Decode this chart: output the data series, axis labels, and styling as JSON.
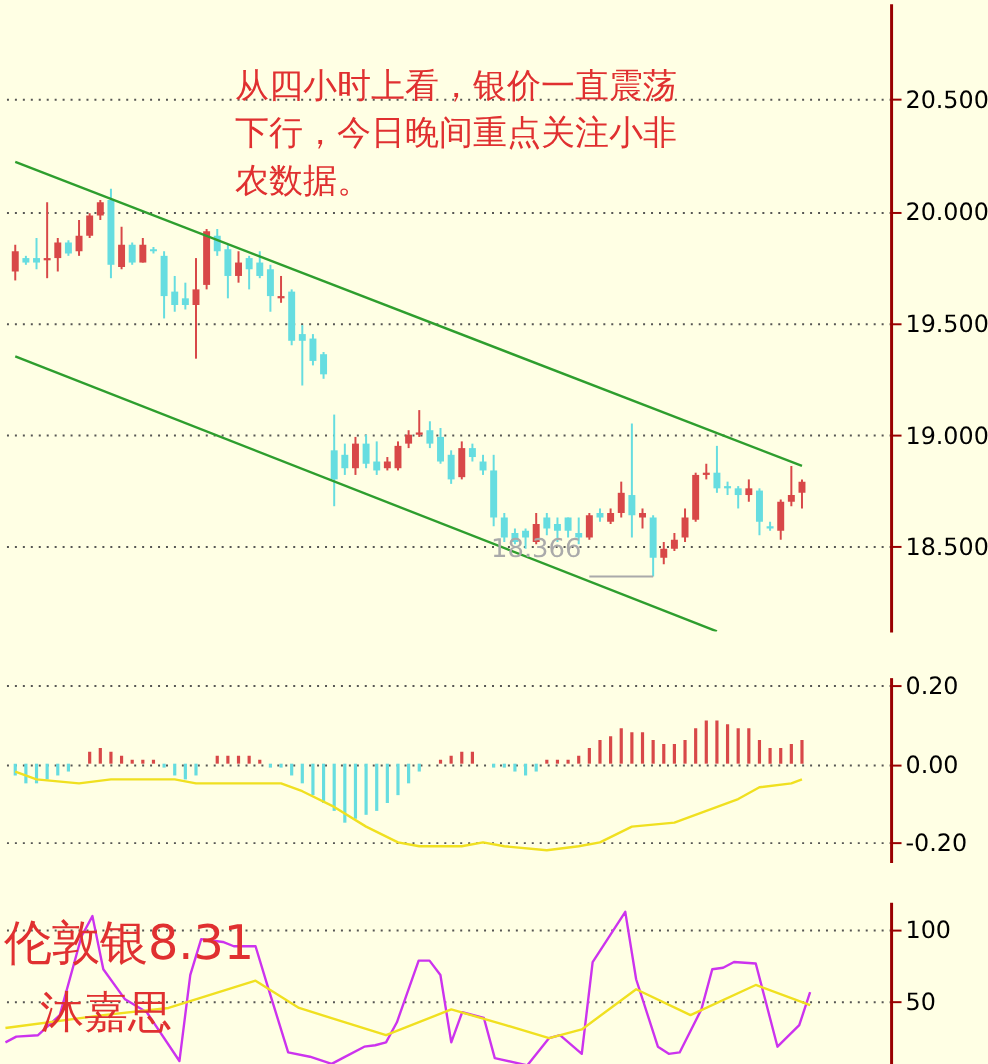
{
  "chart_data": [
    {
      "type": "candlestick",
      "categories": [
        null,
        null,
        null,
        null,
        null,
        null,
        null,
        null,
        null,
        null,
        null,
        null,
        null,
        null,
        null,
        null,
        null,
        null,
        null,
        null,
        null,
        null,
        null,
        null,
        null,
        null,
        null,
        null,
        null,
        null,
        null,
        null,
        null,
        null,
        null,
        null,
        null,
        null,
        null,
        null,
        null,
        null,
        null,
        null,
        null,
        null,
        null,
        null,
        null,
        null,
        null,
        null,
        null,
        null,
        null,
        null,
        null,
        null,
        null,
        null,
        null,
        null,
        null,
        null,
        null,
        null,
        null,
        null,
        null,
        null,
        null,
        null,
        null,
        null,
        null
      ],
      "ohlc": [
        [
          19.73,
          19.85,
          19.69,
          19.82
        ],
        [
          19.79,
          19.8,
          19.76,
          19.77
        ],
        [
          19.79,
          19.88,
          19.74,
          19.77
        ],
        [
          19.78,
          20.04,
          19.7,
          19.79
        ],
        [
          19.79,
          19.88,
          19.73,
          19.86
        ],
        [
          19.86,
          19.87,
          19.8,
          19.81
        ],
        [
          19.82,
          19.96,
          19.8,
          19.89
        ],
        [
          19.89,
          19.99,
          19.88,
          19.98
        ],
        [
          19.98,
          20.05,
          19.96,
          20.04
        ],
        [
          20.05,
          20.1,
          19.7,
          19.76
        ],
        [
          19.75,
          19.93,
          19.74,
          19.85
        ],
        [
          19.85,
          19.86,
          19.76,
          19.77
        ],
        [
          19.77,
          19.88,
          19.77,
          19.85
        ],
        [
          19.83,
          19.84,
          19.81,
          19.82
        ],
        [
          19.8,
          19.82,
          19.52,
          19.62
        ],
        [
          19.64,
          19.71,
          19.55,
          19.58
        ],
        [
          19.61,
          19.68,
          19.56,
          19.58
        ],
        [
          19.58,
          19.79,
          19.34,
          19.65
        ],
        [
          19.67,
          19.92,
          19.65,
          19.91
        ],
        [
          19.89,
          19.92,
          19.8,
          19.82
        ],
        [
          19.83,
          19.85,
          19.61,
          19.71
        ],
        [
          19.71,
          19.82,
          19.68,
          19.77
        ],
        [
          19.79,
          19.8,
          19.65,
          19.74
        ],
        [
          19.77,
          19.82,
          19.7,
          19.71
        ],
        [
          19.74,
          19.76,
          19.55,
          19.62
        ],
        [
          19.61,
          19.71,
          19.59,
          19.62
        ],
        [
          19.64,
          19.65,
          19.4,
          19.42
        ],
        [
          19.45,
          19.49,
          19.22,
          19.42
        ],
        [
          19.43,
          19.45,
          19.31,
          19.33
        ],
        [
          19.36,
          19.37,
          19.25,
          19.27
        ],
        [
          18.93,
          19.09,
          18.68,
          18.8
        ],
        [
          18.91,
          18.96,
          18.82,
          18.85
        ],
        [
          18.85,
          18.99,
          18.82,
          18.96
        ],
        [
          18.96,
          19.0,
          18.85,
          18.87
        ],
        [
          18.88,
          18.97,
          18.82,
          18.84
        ],
        [
          18.85,
          18.9,
          18.84,
          18.88
        ],
        [
          18.85,
          18.97,
          18.84,
          18.95
        ],
        [
          18.96,
          19.02,
          18.94,
          19.0
        ],
        [
          19.0,
          19.11,
          18.99,
          19.01
        ],
        [
          19.02,
          19.06,
          18.94,
          18.96
        ],
        [
          18.99,
          19.03,
          18.87,
          18.88
        ],
        [
          18.91,
          18.93,
          18.78,
          18.8
        ],
        [
          18.81,
          18.97,
          18.8,
          18.94
        ],
        [
          18.94,
          18.96,
          18.88,
          18.9
        ],
        [
          18.88,
          18.91,
          18.82,
          18.84
        ],
        [
          18.84,
          18.91,
          18.59,
          18.63
        ],
        [
          18.63,
          18.65,
          18.52,
          18.54
        ],
        [
          18.56,
          18.58,
          18.51,
          18.52
        ],
        [
          18.57,
          18.58,
          18.49,
          18.54
        ],
        [
          18.52,
          18.65,
          18.51,
          18.6
        ],
        [
          18.63,
          18.65,
          18.55,
          18.58
        ],
        [
          18.6,
          18.63,
          18.52,
          18.57
        ],
        [
          18.63,
          18.63,
          18.54,
          18.57
        ],
        [
          18.56,
          18.63,
          18.51,
          18.54
        ],
        [
          18.54,
          18.65,
          18.53,
          18.64
        ],
        [
          18.65,
          18.67,
          18.61,
          18.63
        ],
        [
          18.61,
          18.67,
          18.6,
          18.65
        ],
        [
          18.65,
          18.79,
          18.63,
          18.74
        ],
        [
          18.73,
          19.05,
          18.54,
          18.64
        ],
        [
          18.63,
          18.67,
          18.58,
          18.65
        ],
        [
          18.63,
          18.64,
          18.366,
          18.45
        ],
        [
          18.45,
          18.52,
          18.42,
          18.49
        ],
        [
          18.49,
          18.56,
          18.48,
          18.53
        ],
        [
          18.54,
          18.67,
          18.52,
          18.63
        ],
        [
          18.62,
          18.83,
          18.61,
          18.82
        ],
        [
          18.82,
          18.87,
          18.8,
          18.83
        ],
        [
          18.83,
          18.95,
          18.74,
          18.76
        ],
        [
          18.77,
          18.79,
          18.73,
          18.76
        ],
        [
          18.76,
          18.77,
          18.67,
          18.73
        ],
        [
          18.73,
          18.8,
          18.7,
          18.76
        ],
        [
          18.75,
          18.76,
          18.55,
          18.61
        ],
        [
          18.59,
          18.61,
          18.57,
          18.58
        ],
        [
          18.57,
          18.71,
          18.53,
          18.7
        ],
        [
          18.7,
          18.86,
          18.68,
          18.73
        ],
        [
          18.74,
          18.8,
          18.67,
          18.79
        ]
      ],
      "colors": [
        "#d84848",
        "#66dde0",
        "#66dde0",
        "#d84848",
        "#d84848",
        "#66dde0",
        "#d84848",
        "#d84848",
        "#d84848",
        "#66dde0",
        "#d84848",
        "#66dde0",
        "#d84848",
        "#66dde0",
        "#66dde0",
        "#66dde0",
        "#66dde0",
        "#d84848",
        "#d84848",
        "#66dde0",
        "#66dde0",
        "#d84848",
        "#66dde0",
        "#66dde0",
        "#66dde0",
        "#d84848",
        "#66dde0",
        "#66dde0",
        "#66dde0",
        "#66dde0",
        "#66dde0",
        "#66dde0",
        "#d84848",
        "#66dde0",
        "#66dde0",
        "#d84848",
        "#d84848",
        "#d84848",
        "#d84848",
        "#66dde0",
        "#66dde0",
        "#66dde0",
        "#d84848",
        "#66dde0",
        "#66dde0",
        "#66dde0",
        "#66dde0",
        "#66dde0",
        "#66dde0",
        "#d84848",
        "#66dde0",
        "#66dde0",
        "#66dde0",
        "#66dde0",
        "#d84848",
        "#66dde0",
        "#d84848",
        "#d84848",
        "#66dde0",
        "#d84848",
        "#66dde0",
        "#d84848",
        "#d84848",
        "#d84848",
        "#d84848",
        "#d84848",
        "#66dde0",
        "#66dde0",
        "#66dde0",
        "#d84848",
        "#66dde0",
        "#66dde0",
        "#d84848",
        "#d84848",
        "#d84848"
      ],
      "series": [
        {
          "type": "line",
          "color": "#2e9e2e",
          "values": [
            20.22,
            null,
            null,
            null,
            null,
            null,
            null,
            null,
            null,
            null,
            null,
            null,
            null,
            null,
            null,
            null,
            null,
            null,
            null,
            null,
            null,
            null,
            null,
            null,
            null,
            null,
            null,
            null,
            null,
            null,
            null,
            null,
            null,
            null,
            null,
            null,
            null,
            null,
            null,
            null,
            null,
            null,
            null,
            null,
            null,
            null,
            null,
            null,
            null,
            null,
            null,
            null,
            null,
            null,
            null,
            null,
            null,
            null,
            null,
            null,
            null,
            null,
            null,
            null,
            null,
            null,
            null,
            null,
            null,
            null,
            null,
            null,
            null,
            null,
            18.86
          ]
        },
        {
          "type": "line",
          "color": "#2e9e2e",
          "values": [
            19.35,
            null,
            null,
            null,
            null,
            null,
            null,
            null,
            null,
            null,
            null,
            null,
            null,
            null,
            null,
            null,
            null,
            null,
            null,
            null,
            null,
            null,
            null,
            null,
            null,
            null,
            null,
            null,
            null,
            null,
            null,
            null,
            null,
            null,
            null,
            null,
            null,
            null,
            null,
            null,
            null,
            null,
            null,
            null,
            null,
            null,
            null,
            null,
            null,
            null,
            null,
            null,
            null,
            null,
            null,
            null,
            null,
            null,
            null,
            null,
            null,
            null,
            null,
            null,
            null,
            null,
            18.12,
            null,
            null,
            null,
            null,
            null,
            null,
            null,
            null
          ]
        }
      ],
      "ylim": [
        18.12,
        20.93
      ],
      "yticks": [
        {
          "value": 18.5,
          "label": "18.500"
        },
        {
          "value": 19,
          "label": "19.000"
        },
        {
          "value": 19.5,
          "label": "19.500"
        },
        {
          "value": 20,
          "label": "20.000"
        },
        {
          "value": 20.5,
          "label": "20.500"
        }
      ],
      "grid": "y",
      "tick_labels": "y",
      "annotations": [
        "从四小时上看，银价一直震荡下行，今日晚间重点关注小非农数据。",
        "18.366"
      ]
    },
    {
      "type": "bar",
      "categories": [
        null,
        null,
        null,
        null,
        null,
        null,
        null,
        null,
        null,
        null,
        null,
        null,
        null,
        null,
        null,
        null,
        null,
        null,
        null,
        null,
        null,
        null,
        null,
        null,
        null,
        null,
        null,
        null,
        null,
        null,
        null,
        null,
        null,
        null,
        null,
        null,
        null,
        null,
        null,
        null,
        null,
        null,
        null,
        null,
        null,
        null,
        null,
        null,
        null,
        null,
        null,
        null,
        null,
        null,
        null,
        null,
        null,
        null,
        null,
        null,
        null,
        null,
        null,
        null,
        null,
        null,
        null,
        null,
        null,
        null,
        null,
        null,
        null,
        null,
        null
      ],
      "series": [
        {
          "type": "bar",
          "values": [
            -0.03,
            -0.05,
            -0.05,
            -0.04,
            -0.03,
            -0.02,
            null,
            0.03,
            0.04,
            0.03,
            0.02,
            0.01,
            0.01,
            0.01,
            -0.01,
            -0.03,
            -0.04,
            -0.03,
            null,
            0.02,
            0.02,
            0.02,
            0.02,
            0.01,
            -0.01,
            -0.01,
            -0.03,
            -0.05,
            -0.08,
            -0.1,
            -0.12,
            -0.15,
            -0.14,
            -0.13,
            -0.12,
            -0.1,
            -0.08,
            -0.05,
            -0.02,
            null,
            0.01,
            0.02,
            0.03,
            0.03,
            null,
            -0.01,
            -0.01,
            -0.02,
            -0.03,
            -0.02,
            0.01,
            0.01,
            0.01,
            0.02,
            0.04,
            0.06,
            0.07,
            0.09,
            0.08,
            0.08,
            0.06,
            0.05,
            0.05,
            0.06,
            0.09,
            0.11,
            0.11,
            0.1,
            0.09,
            0.09,
            0.06,
            0.04,
            0.04,
            0.05,
            0.06
          ],
          "colors": [
            "#66dde0",
            "#66dde0",
            "#66dde0",
            "#66dde0",
            "#66dde0",
            "#66dde0",
            "#66dde0",
            "#d84848",
            "#d84848",
            "#d84848",
            "#d84848",
            "#d84848",
            "#d84848",
            "#d84848",
            "#66dde0",
            "#66dde0",
            "#66dde0",
            "#66dde0",
            "#66dde0",
            "#d84848",
            "#d84848",
            "#d84848",
            "#d84848",
            "#d84848",
            "#66dde0",
            "#66dde0",
            "#66dde0",
            "#66dde0",
            "#66dde0",
            "#66dde0",
            "#66dde0",
            "#66dde0",
            "#66dde0",
            "#66dde0",
            "#66dde0",
            "#66dde0",
            "#66dde0",
            "#66dde0",
            "#66dde0",
            "#66dde0",
            "#d84848",
            "#d84848",
            "#d84848",
            "#d84848",
            "#66dde0",
            "#66dde0",
            "#66dde0",
            "#66dde0",
            "#66dde0",
            "#66dde0",
            "#d84848",
            "#d84848",
            "#d84848",
            "#d84848",
            "#d84848",
            "#d84848",
            "#d84848",
            "#d84848",
            "#d84848",
            "#d84848",
            "#d84848",
            "#d84848",
            "#d84848",
            "#d84848",
            "#d84848",
            "#d84848",
            "#d84848",
            "#d84848",
            "#d84848",
            "#d84848",
            "#d84848",
            "#d84848",
            "#d84848",
            "#d84848",
            "#d84848"
          ]
        },
        {
          "type": "line",
          "color": "#f0e020",
          "values": [
            -0.02,
            null,
            -0.04,
            null,
            null,
            null,
            -0.05,
            null,
            null,
            -0.04,
            null,
            null,
            null,
            null,
            null,
            -0.04,
            null,
            -0.05,
            null,
            null,
            null,
            -0.05,
            null,
            null,
            null,
            -0.05,
            null,
            -0.07,
            null,
            null,
            -0.11,
            null,
            null,
            -0.16,
            null,
            null,
            -0.2,
            null,
            -0.21,
            null,
            null,
            null,
            -0.21,
            null,
            -0.2,
            null,
            -0.21,
            null,
            null,
            null,
            -0.22,
            null,
            null,
            -0.21,
            null,
            -0.2,
            null,
            null,
            -0.16,
            null,
            null,
            null,
            -0.15,
            null,
            null,
            -0.12,
            null,
            null,
            -0.09,
            null,
            -0.06,
            null,
            null,
            -0.05,
            -0.04
          ]
        }
      ],
      "ylim": [
        -0.25,
        0.22
      ],
      "yticks": [
        {
          "value": -0.2,
          "label": "-0.20"
        },
        {
          "value": 0,
          "label": "0.00"
        },
        {
          "value": 0.2,
          "label": "0.20"
        }
      ],
      "grid": "y",
      "tick_labels": "y"
    },
    {
      "type": "line",
      "categories": [
        null,
        null,
        null,
        null,
        null,
        null,
        null,
        null,
        null,
        null,
        null,
        null,
        null,
        null,
        null,
        null,
        null,
        null,
        null,
        null,
        null,
        null,
        null,
        null,
        null,
        null,
        null,
        null,
        null,
        null,
        null,
        null,
        null,
        null,
        null,
        null,
        null,
        null,
        null,
        null,
        null,
        null,
        null,
        null,
        null,
        null,
        null,
        null,
        null,
        null,
        null,
        null,
        null,
        null,
        null,
        null,
        null,
        null,
        null,
        null,
        null,
        null,
        null,
        null,
        null,
        null,
        null,
        null,
        null,
        null,
        null,
        null,
        null,
        null,
        null
      ],
      "series": [
        {
          "color": "#cc33ee",
          "values": [
            21,
            25,
            null,
            26,
            null,
            40,
            null,
            95,
            109,
            72,
            null,
            51,
            null,
            42,
            null,
            null,
            8,
            68,
            93,
            null,
            91,
            88,
            null,
            88,
            63,
            null,
            14,
            null,
            11,
            null,
            6,
            10,
            null,
            18,
            19,
            21,
            35,
            null,
            78,
            78,
            68,
            21,
            42,
            null,
            38,
            10,
            null,
            null,
            5,
            null,
            24,
            26,
            null,
            13,
            77,
            null,
            null,
            112,
            65,
            null,
            18,
            13,
            14,
            null,
            44,
            72,
            73,
            77,
            null,
            76,
            null,
            18,
            null,
            33,
            56
          ]
        },
        {
          "color": "#f0e020",
          "values": [
            31,
            null,
            null,
            null,
            null,
            null,
            null,
            null,
            null,
            40,
            null,
            null,
            null,
            null,
            null,
            45,
            null,
            null,
            null,
            null,
            null,
            null,
            null,
            64,
            null,
            null,
            null,
            45,
            null,
            null,
            null,
            null,
            null,
            null,
            null,
            26,
            null,
            null,
            null,
            null,
            null,
            44,
            null,
            null,
            null,
            null,
            33,
            null,
            null,
            null,
            24,
            null,
            null,
            30,
            null,
            null,
            null,
            null,
            58,
            null,
            null,
            null,
            null,
            40,
            null,
            null,
            null,
            null,
            null,
            61,
            null,
            null,
            null,
            null,
            47
          ]
        }
      ],
      "ylim": [
        4,
        119
      ],
      "yticks": [
        50,
        100
      ],
      "grid": "y",
      "tick_labels": "y",
      "annotations": [
        "伦敦银8.31",
        "沐嘉思"
      ]
    }
  ]
}
